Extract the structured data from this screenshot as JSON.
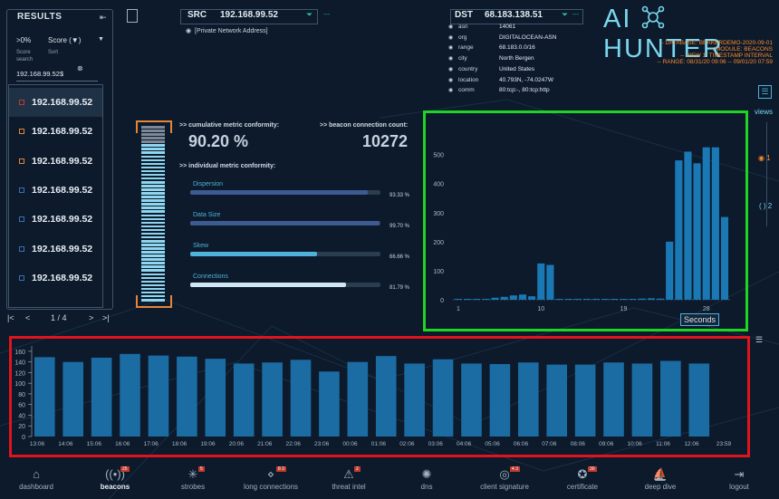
{
  "results": {
    "title": "RESULTS",
    "filter_value": ">0%",
    "sort_value": "Score (▼)",
    "filter_caption": "Score",
    "sort_caption": "Sort",
    "search_caption": "search",
    "search_value": "192.168.99.52$",
    "items": [
      "192.168.99.52",
      "192.168.99.52",
      "192.168.99.52",
      "192.168.99.52",
      "192.168.99.52",
      "192.168.99.52",
      "192.168.99.52"
    ],
    "dot_colors": [
      "#c1392b",
      "#e3853b",
      "#e3853b",
      "#3b6fb5",
      "#3b6fb5",
      "#3b6fb5",
      "#3b6fb5"
    ],
    "page": "1 / 4"
  },
  "src": {
    "label": "SRC",
    "ip": "192.168.99.52",
    "note": "[Private Network Address]"
  },
  "dst": {
    "label": "DST",
    "ip": "68.183.138.51",
    "fields": [
      {
        "key": "asn",
        "val": "14061"
      },
      {
        "key": "org",
        "val": "DIGITALOCEAN-ASN"
      },
      {
        "key": "range",
        "val": "68.183.0.0/16"
      },
      {
        "key": "city",
        "val": "North Bergen"
      },
      {
        "key": "country",
        "val": "United States"
      },
      {
        "key": "location",
        "val": "40.793N, -74.0247W"
      },
      {
        "key": "comm",
        "val": "80:tcp:-, 80:tcp:http"
      }
    ]
  },
  "logo": {
    "left": "AI",
    "right": "HUNTER"
  },
  "meta": [
    "-- DATABASE: BEAKERDEMO-2020-09-01",
    "-- MODULE: BEACONS",
    "-- VIEW 1: TIMESTAMP INTERVAL",
    "-- RANGE: 08/31/20 09:06 -- 09/01/20 07:59"
  ],
  "metrics": {
    "cumulative_label": ">> cumulative metric conformity:",
    "cumulative_value": "90.20 %",
    "count_label": ">> beacon connection count:",
    "count_value": "10272",
    "individual_label": ">> individual metric conformity:",
    "bars": [
      {
        "label": "Dispersion",
        "pct": "93.33 %",
        "value": 93.33
      },
      {
        "label": "Data Size",
        "pct": "99.70 %",
        "value": 99.7
      },
      {
        "label": "Skew",
        "pct": "66.66 %",
        "value": 66.66
      },
      {
        "label": "Connections",
        "pct": "81.79 %",
        "value": 81.79
      }
    ]
  },
  "gauge": {
    "level": 0.9
  },
  "views": {
    "label": "views",
    "options": [
      "1",
      "2"
    ]
  },
  "chart_data": [
    {
      "type": "bar",
      "xlabel": "Seconds",
      "x_ticks": [
        1,
        10,
        19,
        28
      ],
      "y_ticks": [
        0,
        100,
        200,
        300,
        400,
        500
      ],
      "ylim": [
        0,
        580
      ],
      "x": [
        1,
        2,
        3,
        4,
        5,
        6,
        7,
        8,
        9,
        10,
        11,
        12,
        13,
        14,
        15,
        16,
        17,
        18,
        19,
        20,
        21,
        22,
        23,
        24,
        25,
        26,
        27,
        28,
        29,
        30
      ],
      "values": [
        0,
        0,
        1,
        2,
        7,
        10,
        15,
        18,
        12,
        125,
        120,
        3,
        2,
        2,
        1,
        0,
        0,
        2,
        3,
        3,
        4,
        5,
        4,
        200,
        480,
        510,
        470,
        525,
        525,
        285
      ]
    },
    {
      "type": "bar",
      "categories": [
        "13:06",
        "14:06",
        "15:06",
        "16:06",
        "17:06",
        "18:06",
        "19:06",
        "20:06",
        "21:06",
        "22:06",
        "23:06",
        "00:06",
        "01:06",
        "02:06",
        "03:06",
        "04:06",
        "05:06",
        "06:06",
        "07:06",
        "08:06",
        "09:06",
        "10:06",
        "11:06",
        "12:06"
      ],
      "values": [
        149,
        140,
        148,
        155,
        152,
        150,
        146,
        137,
        139,
        144,
        122,
        140,
        151,
        137,
        145,
        137,
        136,
        139,
        135,
        135,
        139,
        137,
        142,
        137
      ],
      "y_ticks": [
        0,
        20,
        40,
        60,
        80,
        100,
        120,
        140,
        160
      ],
      "ylim": [
        0,
        170
      ],
      "x_end_label": "23:59"
    }
  ],
  "nav": [
    {
      "label": "dashboard",
      "icon": "home-icon",
      "badge": ""
    },
    {
      "label": "beacons",
      "icon": "beacon-icon",
      "badge": "25"
    },
    {
      "label": "strobes",
      "icon": "strobe-icon",
      "badge": "5"
    },
    {
      "label": "long connections",
      "icon": "long-connections-icon",
      "badge": "8 3"
    },
    {
      "label": "threat intel",
      "icon": "warning-icon",
      "badge": "2"
    },
    {
      "label": "dns",
      "icon": "dns-icon",
      "badge": ""
    },
    {
      "label": "client signature",
      "icon": "fingerprint-icon",
      "badge": "4 3"
    },
    {
      "label": "certificate",
      "icon": "certificate-icon",
      "badge": "30"
    },
    {
      "label": "deep dive",
      "icon": "deep-dive-icon",
      "badge": ""
    },
    {
      "label": "logout",
      "icon": "logout-icon",
      "badge": ""
    }
  ]
}
